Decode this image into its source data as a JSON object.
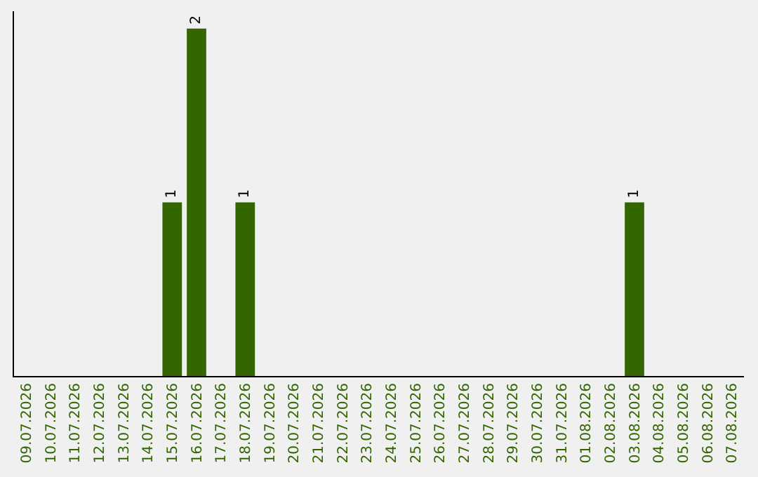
{
  "chart_data": {
    "type": "bar",
    "categories": [
      "09.07.2026",
      "10.07.2026",
      "11.07.2026",
      "12.07.2026",
      "13.07.2026",
      "14.07.2026",
      "15.07.2026",
      "16.07.2026",
      "17.07.2026",
      "18.07.2026",
      "19.07.2026",
      "20.07.2026",
      "21.07.2026",
      "22.07.2026",
      "23.07.2026",
      "24.07.2026",
      "25.07.2026",
      "26.07.2026",
      "27.07.2026",
      "28.07.2026",
      "29.07.2026",
      "30.07.2026",
      "31.07.2026",
      "01.08.2026",
      "02.08.2026",
      "03.08.2026",
      "04.08.2026",
      "05.08.2026",
      "06.08.2026",
      "07.08.2026"
    ],
    "values": [
      0,
      0,
      0,
      0,
      0,
      0,
      1,
      2,
      0,
      1,
      0,
      0,
      0,
      0,
      0,
      0,
      0,
      0,
      0,
      0,
      0,
      0,
      0,
      0,
      0,
      1,
      0,
      0,
      0,
      0
    ],
    "value_labels": [
      null,
      null,
      null,
      null,
      null,
      null,
      "1",
      "2",
      null,
      "1",
      null,
      null,
      null,
      null,
      null,
      null,
      null,
      null,
      null,
      null,
      null,
      null,
      null,
      null,
      null,
      "1",
      null,
      null,
      null,
      null
    ],
    "color": "#336600",
    "ylim": [
      0,
      2.1
    ],
    "tick_labels": "x",
    "grid": false,
    "legend": false
  }
}
